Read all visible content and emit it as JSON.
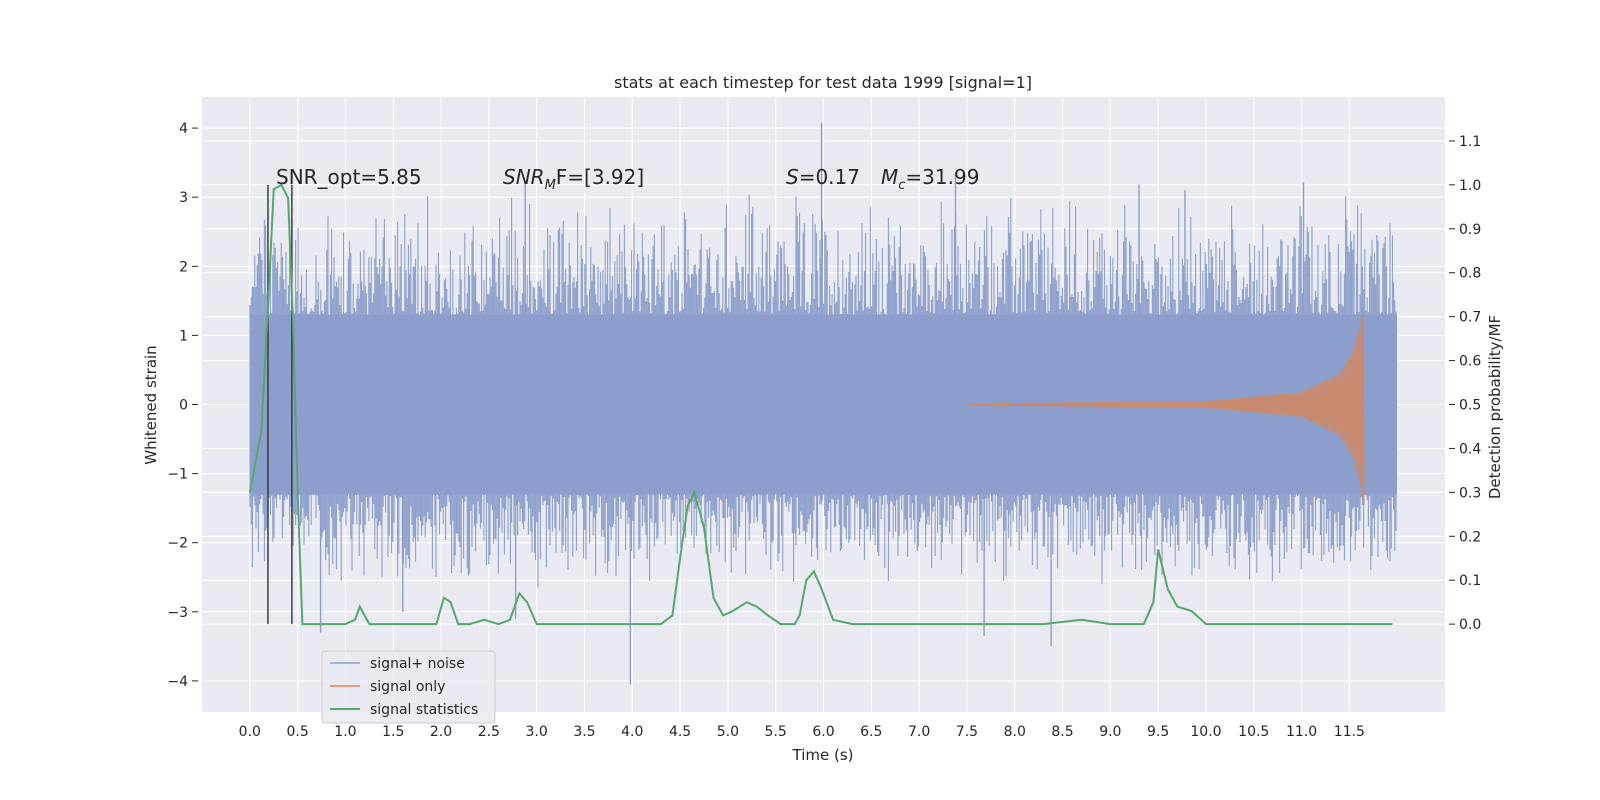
{
  "chart_data": {
    "type": "line",
    "title": "stats at each timestep for test data 1999 [signal=1]",
    "xlabel": "Time (s)",
    "ylabel": "Whitened strain",
    "y2label": "Detection probability/MF",
    "xlim": [
      -0.5,
      12.5
    ],
    "ylim": [
      -4.45,
      4.45
    ],
    "y2lim": [
      -0.2,
      1.2
    ],
    "x_ticks": [
      0.0,
      0.5,
      1.0,
      1.5,
      2.0,
      2.5,
      3.0,
      3.5,
      4.0,
      4.5,
      5.0,
      5.5,
      6.0,
      6.5,
      7.0,
      7.5,
      8.0,
      8.5,
      9.0,
      9.5,
      10.0,
      10.5,
      11.0,
      11.5
    ],
    "x_tick_labels": [
      "0.0",
      "0.5",
      "1.0",
      "1.5",
      "2.0",
      "2.5",
      "3.0",
      "3.5",
      "4.0",
      "4.5",
      "5.0",
      "5.5",
      "6.0",
      "6.5",
      "7.0",
      "7.5",
      "8.0",
      "8.5",
      "9.0",
      "9.5",
      "10.0",
      "10.5",
      "11.0",
      "11.5"
    ],
    "y_ticks": [
      -4,
      -3,
      -2,
      -1,
      0,
      1,
      2,
      3,
      4
    ],
    "y_tick_labels": [
      "−4",
      "−3",
      "−2",
      "−1",
      "0",
      "1",
      "2",
      "3",
      "4"
    ],
    "y2_ticks": [
      0.0,
      0.1,
      0.2,
      0.3,
      0.4,
      0.5,
      0.6,
      0.7,
      0.8,
      0.9,
      1.0,
      1.1
    ],
    "y2_tick_labels": [
      "0.0",
      "0.1",
      "0.2",
      "0.3",
      "0.4",
      "0.5",
      "0.6",
      "0.7",
      "0.8",
      "0.9",
      "1.0",
      "1.1"
    ],
    "grid": true,
    "legend_position": "lower-left",
    "annotations": {
      "snr_opt": "SNR_opt=5.85",
      "snr_mf_prefix": "SNR",
      "snr_mf_sub": "M",
      "snr_mf_suffix": "F=[3.92]",
      "s_symbol": "S",
      "s_value": "=0.17",
      "mc_symbol": "M",
      "mc_sub": "c",
      "mc_value": "=31.99"
    },
    "vertical_markers": [
      0.19,
      0.44
    ],
    "colors": {
      "signal_noise": "#8c9fcc",
      "signal_only": "#dd8452",
      "signal_statistics": "#55a868",
      "markers": "#333333",
      "background": "#eaeaf2"
    },
    "series": [
      {
        "name": "signal+ noise",
        "axis": "left",
        "time_range": [
          0.0,
          12.0
        ],
        "dense_band": [
          -1.3,
          1.3
        ],
        "envelope": [
          -2.7,
          3.1
        ],
        "extreme_values": [
          {
            "x": 5.98,
            "y": 4.08
          },
          {
            "x": 7.38,
            "y": 3.35
          },
          {
            "x": 3.98,
            "y": -4.05
          },
          {
            "x": 8.38,
            "y": -3.5
          },
          {
            "x": 7.68,
            "y": -3.35
          },
          {
            "x": 0.74,
            "y": -3.3
          },
          {
            "x": 2.88,
            "y": 3.22
          },
          {
            "x": 2.78,
            "y": -3.1
          },
          {
            "x": 11.02,
            "y": 3.22
          },
          {
            "x": 9.78,
            "y": 3.1
          },
          {
            "x": 9.3,
            "y": 3.18
          },
          {
            "x": 1.6,
            "y": -3.0
          }
        ]
      },
      {
        "name": "signal only",
        "axis": "left",
        "description_points": [
          {
            "x": 8.0,
            "amp": 0.02
          },
          {
            "x": 10.0,
            "amp": 0.05
          },
          {
            "x": 11.0,
            "amp": 0.18
          },
          {
            "x": 11.4,
            "amp": 0.45
          },
          {
            "x": 11.55,
            "amp": 0.8
          },
          {
            "x": 11.63,
            "amp": 1.25
          },
          {
            "x": 11.66,
            "amp": 1.5
          }
        ]
      },
      {
        "name": "signal statistics",
        "axis": "right",
        "x": [
          0.0,
          0.12,
          0.19,
          0.25,
          0.33,
          0.4,
          0.45,
          0.5,
          0.55,
          0.62,
          0.7,
          0.8,
          1.0,
          1.1,
          1.15,
          1.25,
          1.32,
          1.4,
          1.6,
          1.75,
          1.95,
          2.03,
          2.1,
          2.18,
          2.3,
          2.45,
          2.6,
          2.72,
          2.82,
          2.9,
          3.0,
          3.1,
          3.5,
          4.0,
          4.3,
          4.42,
          4.5,
          4.58,
          4.65,
          4.75,
          4.85,
          4.95,
          5.05,
          5.2,
          5.3,
          5.42,
          5.55,
          5.7,
          5.75,
          5.82,
          5.9,
          5.98,
          6.1,
          6.3,
          6.6,
          7.0,
          7.5,
          8.0,
          8.3,
          8.7,
          9.0,
          9.35,
          9.45,
          9.5,
          9.6,
          9.7,
          9.85,
          10.0,
          10.5,
          11.0,
          11.5,
          11.8,
          11.95
        ],
        "values": [
          0.3,
          0.44,
          0.72,
          0.99,
          1.0,
          0.97,
          0.7,
          0.3,
          0.0,
          0.0,
          0.0,
          0.0,
          0.0,
          0.01,
          0.04,
          0.0,
          0.0,
          0.0,
          0.0,
          0.0,
          0.0,
          0.06,
          0.05,
          0.0,
          0.0,
          0.01,
          0.0,
          0.01,
          0.07,
          0.05,
          0.0,
          0.0,
          0.0,
          0.0,
          0.0,
          0.02,
          0.15,
          0.27,
          0.3,
          0.22,
          0.06,
          0.02,
          0.03,
          0.05,
          0.04,
          0.02,
          0.0,
          0.0,
          0.02,
          0.1,
          0.12,
          0.08,
          0.01,
          0.0,
          0.0,
          0.0,
          0.0,
          0.0,
          0.0,
          0.01,
          0.0,
          0.0,
          0.05,
          0.17,
          0.08,
          0.04,
          0.03,
          0.0,
          0.0,
          0.0,
          0.0,
          0.0,
          0.0
        ]
      }
    ]
  }
}
